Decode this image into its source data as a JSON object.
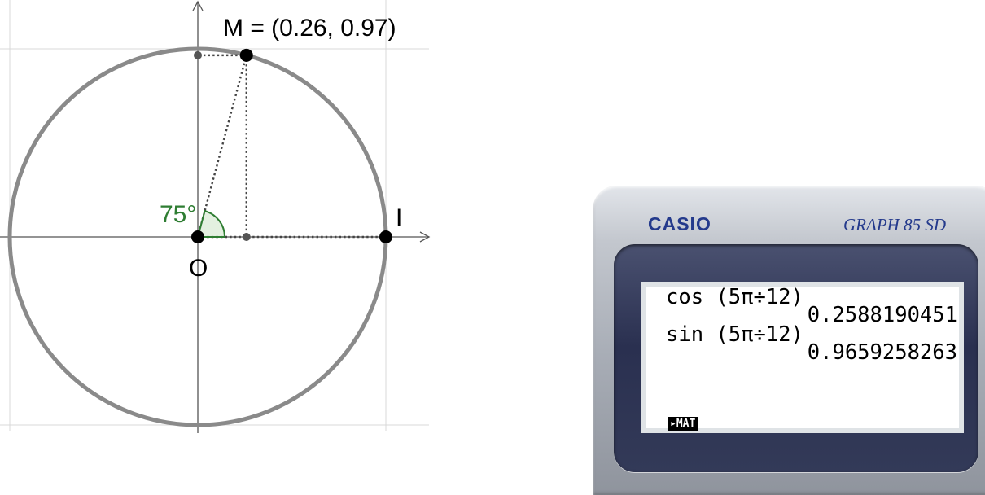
{
  "figure": {
    "point_m_label": "M = (0.26, 0.97)",
    "point_o_label": "O",
    "point_i_label": "I",
    "angle_label": "75°",
    "angle_degrees": 75,
    "point_m": [
      0.26,
      0.97
    ],
    "colors": {
      "circle": "#8a8a8a",
      "grid": "#d9d9d9",
      "axis": "#555555",
      "angle": "#2e7d32",
      "point": "#000000"
    }
  },
  "calculator": {
    "brand": "CASIO",
    "model": "GRAPH 85 SD",
    "lines": [
      "cos (5π÷12)",
      "0.2588190451",
      "sin (5π÷12)",
      "0.9659258263"
    ],
    "menu_label": "▸MAT"
  }
}
